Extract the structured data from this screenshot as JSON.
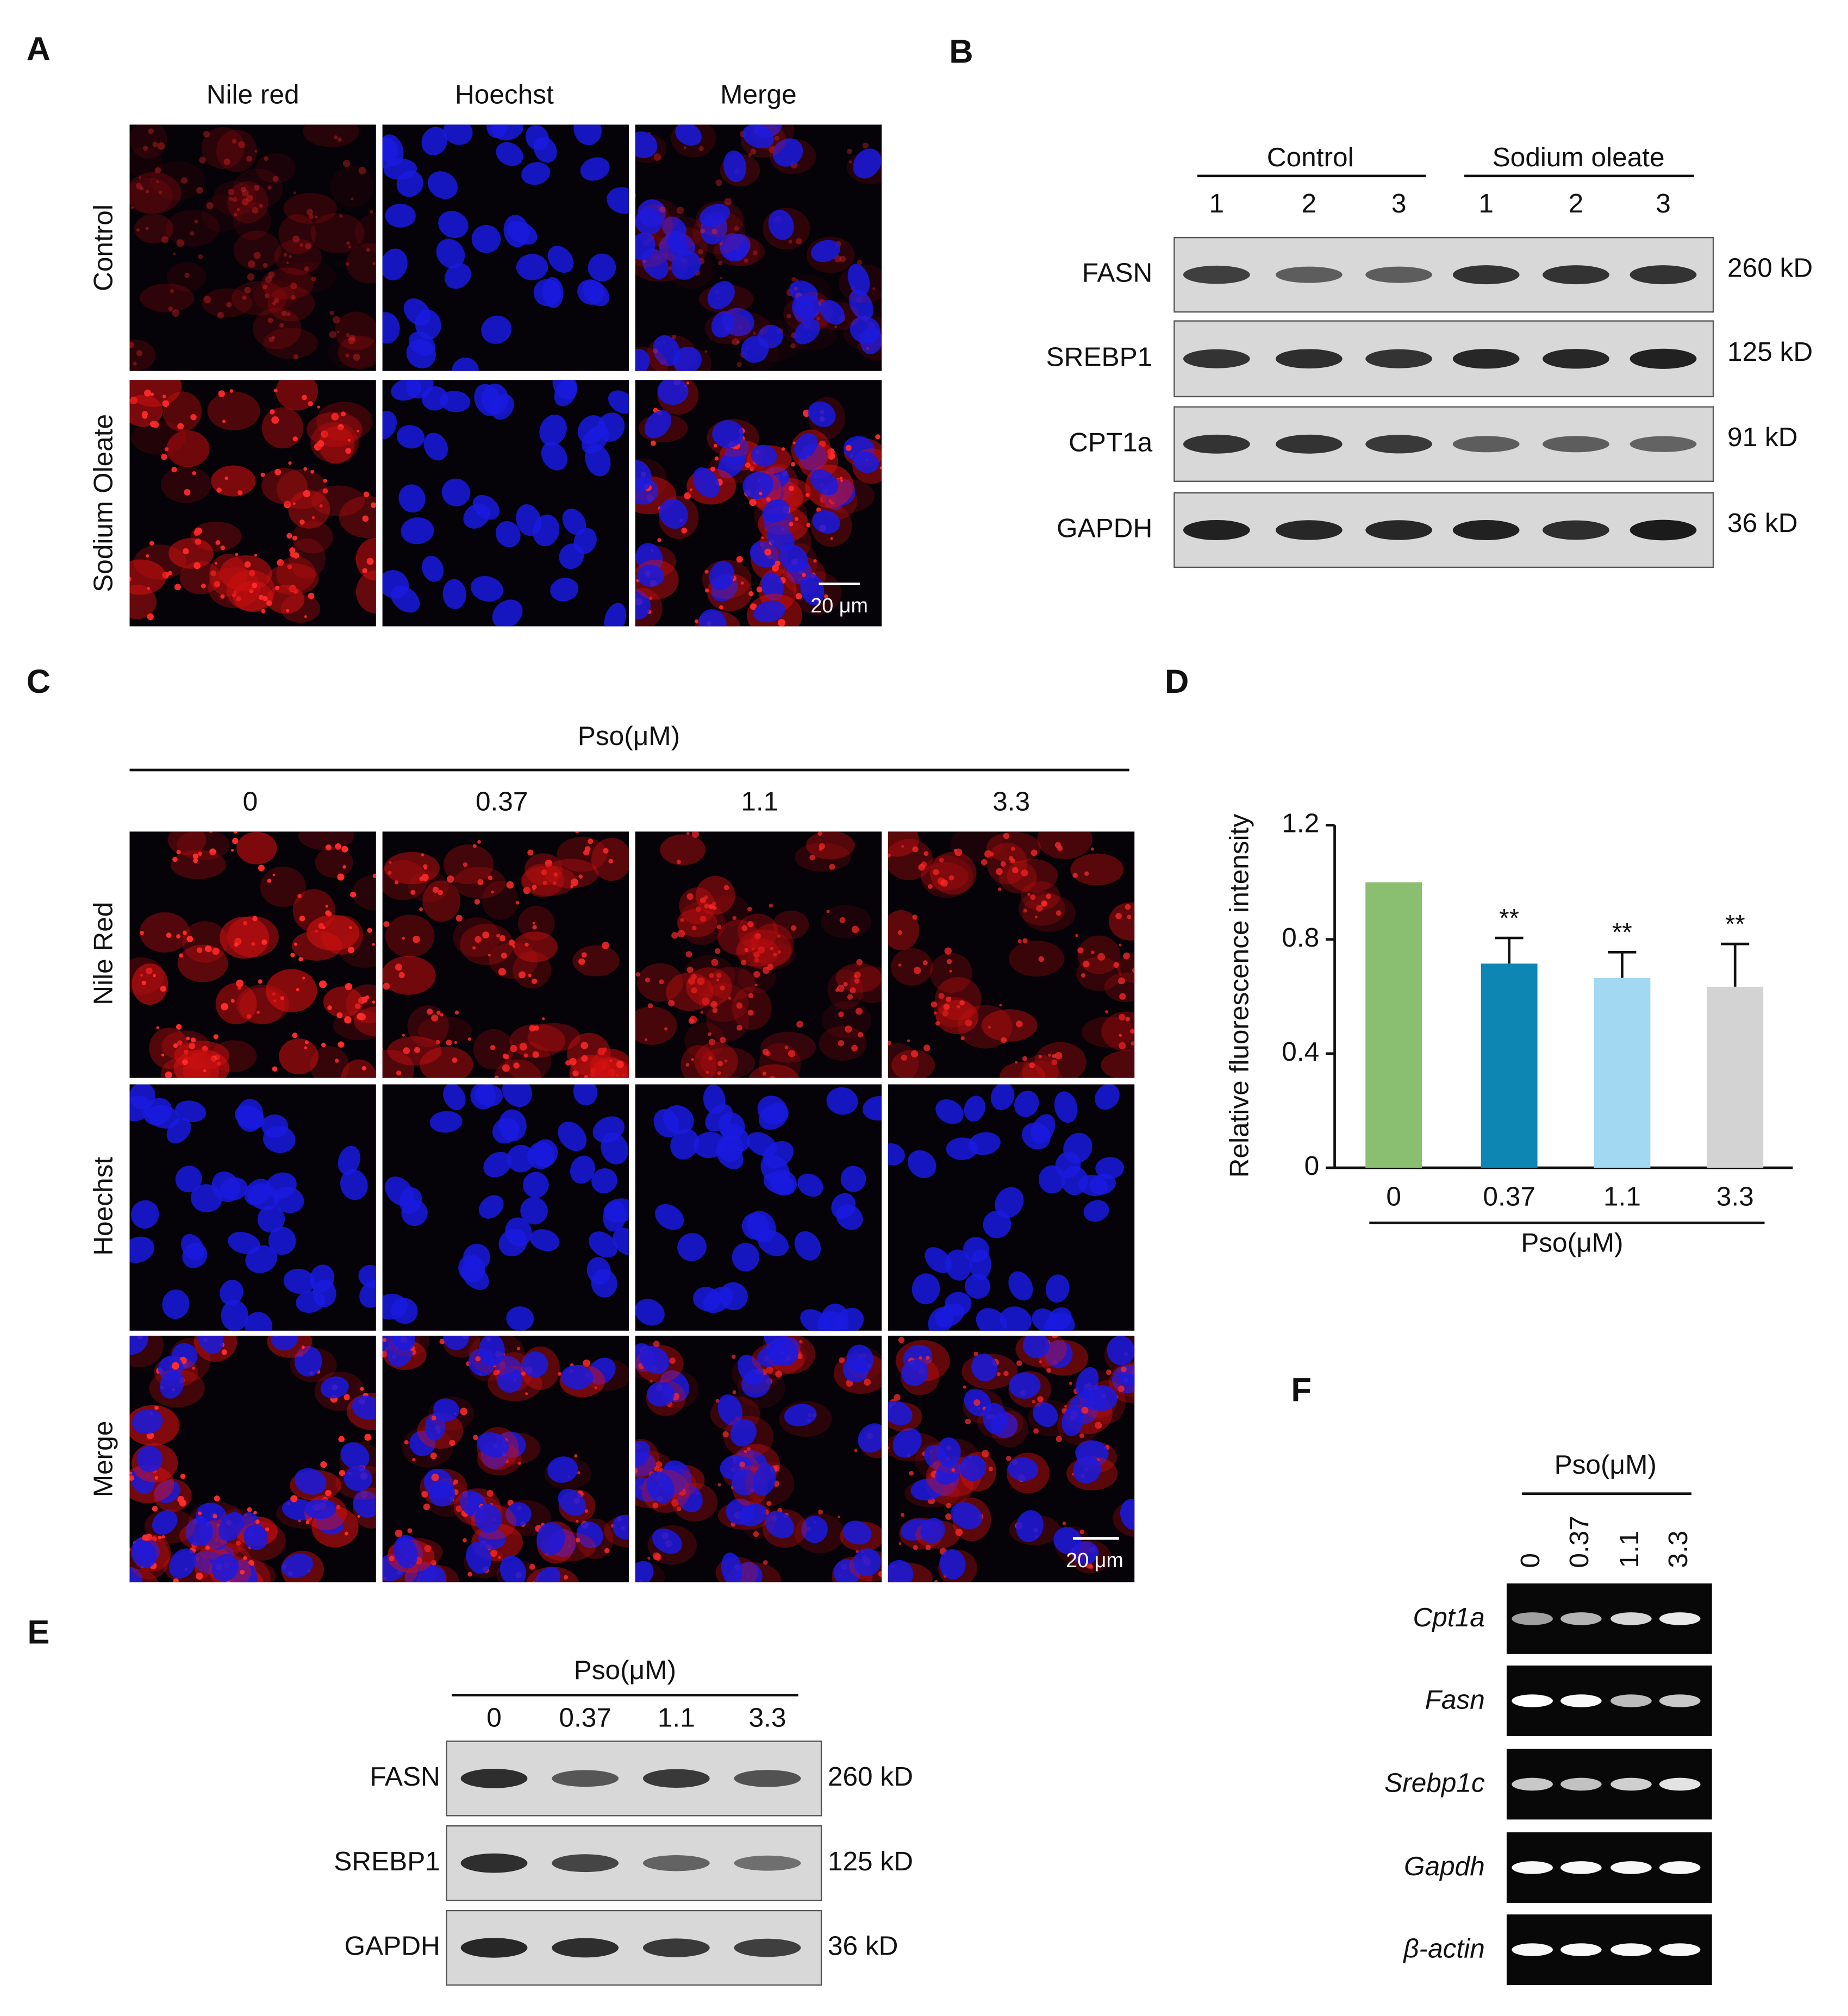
{
  "panel_a": {
    "label": "A",
    "columns": [
      "Nile red",
      "Hoechst",
      "Merge"
    ],
    "rows": [
      "Control",
      "Sodium Oleate"
    ],
    "scale_bar": "20 μm"
  },
  "panel_b": {
    "label": "B",
    "groups": [
      "Control",
      "Sodium oleate"
    ],
    "lanes": [
      "1",
      "2",
      "3",
      "1",
      "2",
      "3"
    ],
    "proteins": [
      "FASN",
      "SREBP1",
      "CPT1a",
      "GAPDH"
    ],
    "sizes": [
      "260 kD",
      "125 kD",
      "91 kD",
      "36 kD"
    ]
  },
  "panel_c": {
    "label": "C",
    "treatment": "Pso(μM)",
    "doses": [
      "0",
      "0.37",
      "1.1",
      "3.3"
    ],
    "rows": [
      "Nile Red",
      "Hoechst",
      "Merge"
    ],
    "scale_bar": "20 μm"
  },
  "chart_data": {
    "type": "bar",
    "panel_label": "D",
    "y_label": "Relative fluorescence intensity",
    "x_label": "Pso(μM)",
    "categories": [
      "0",
      "0.37",
      "1.1",
      "3.3"
    ],
    "values": [
      1.0,
      0.715,
      0.665,
      0.634
    ],
    "errors": [
      0,
      0.09,
      0.09,
      0.15
    ],
    "colors": [
      "#8abf72",
      "#0e86b4",
      "#a2d8f2",
      "#d3d3d3"
    ],
    "significance": [
      null,
      "**",
      "**",
      "**"
    ],
    "ylim": [
      0,
      1.2
    ],
    "yticks": [
      0,
      0.4,
      0.8,
      1.2
    ]
  },
  "panel_e": {
    "label": "E",
    "treatment": "Pso(μM)",
    "doses": [
      "0",
      "0.37",
      "1.1",
      "3.3"
    ],
    "proteins": [
      "FASN",
      "SREBP1",
      "GAPDH"
    ],
    "sizes": [
      "260 kD",
      "125 kD",
      "36 kD"
    ]
  },
  "panel_f": {
    "label": "F",
    "treatment": "Pso(μM)",
    "doses": [
      "0",
      "0.37",
      "1.1",
      "3.3"
    ],
    "genes": [
      "Cpt1a",
      "Fasn",
      "Srebp1c",
      "Gapdh",
      "β-actin"
    ]
  }
}
